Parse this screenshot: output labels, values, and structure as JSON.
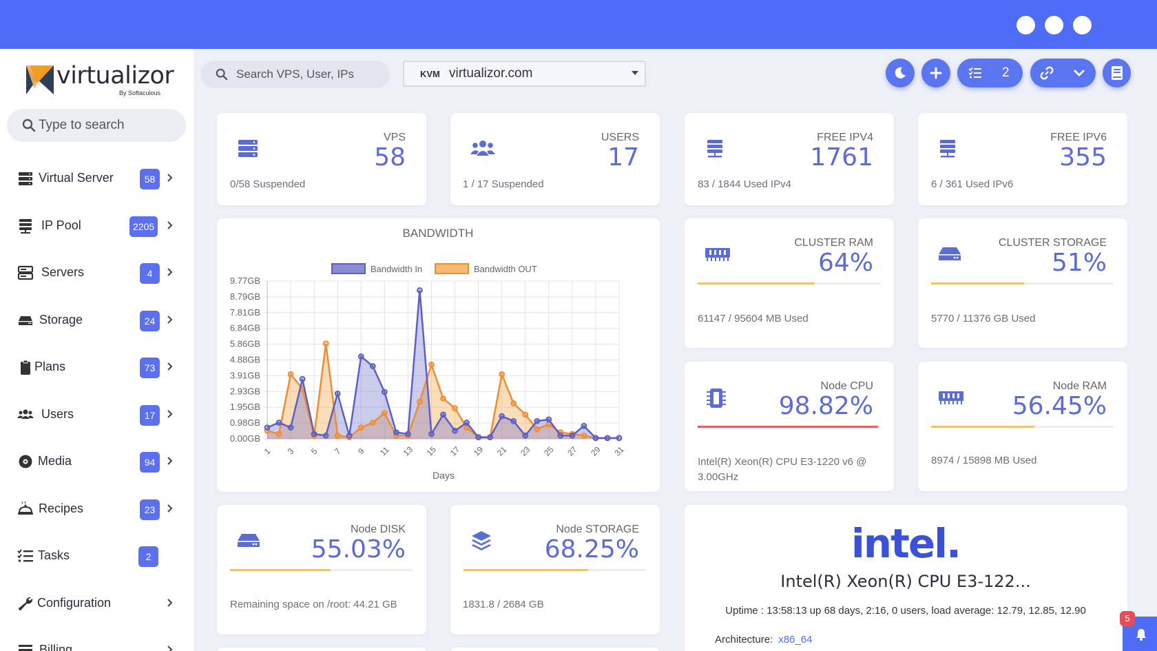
{
  "sidebar": {
    "logo_text": "virtualizor",
    "logo_sub": "By Softaculous",
    "search_placeholder": "Type to search",
    "items": [
      {
        "label": "Virtual Server",
        "badge": "58",
        "icon": "server-icon"
      },
      {
        "label": "IP Pool",
        "badge": "2205",
        "icon": "ip-pool-icon"
      },
      {
        "label": "Servers",
        "badge": "4",
        "icon": "servers-icon"
      },
      {
        "label": "Storage",
        "badge": "24",
        "icon": "hdd-icon"
      },
      {
        "label": "Plans",
        "badge": "73",
        "icon": "clipboard-icon"
      },
      {
        "label": "Users",
        "badge": "17",
        "icon": "users-icon"
      },
      {
        "label": "Media",
        "badge": "94",
        "icon": "disc-icon"
      },
      {
        "label": "Recipes",
        "badge": "23",
        "icon": "recipe-icon"
      },
      {
        "label": "Tasks",
        "badge": "2",
        "icon": "tasks-icon"
      },
      {
        "label": "Configuration",
        "badge": "",
        "icon": "wrench-icon"
      },
      {
        "label": "Billing",
        "badge": "",
        "icon": "billing-icon"
      }
    ]
  },
  "header": {
    "search_placeholder": "Search VPS, User, IPs",
    "server_select": {
      "type": "KVM",
      "host": "virtualizor.com"
    },
    "tasks_count": "2"
  },
  "stats": {
    "vps": {
      "title": "VPS",
      "value": "58",
      "sub": "0/58 Suspended"
    },
    "users": {
      "title": "USERS",
      "value": "17",
      "sub": "1 / 17 Suspended"
    },
    "ipv4": {
      "title": "FREE IPV4",
      "value": "1761",
      "sub": "83 / 1844 Used IPv4"
    },
    "ipv6": {
      "title": "FREE IPV6",
      "value": "355",
      "sub": "6 / 361 Used IPv6"
    },
    "cluster_ram": {
      "title": "CLUSTER RAM",
      "value": "64%",
      "sub": "61147 / 95604 MB Used",
      "progress": 0.64,
      "color": "#f0c36b"
    },
    "cluster_storage": {
      "title": "CLUSTER STORAGE",
      "value": "51%",
      "sub": "5770 / 11376 GB Used",
      "progress": 0.51,
      "color": "#f0c36b"
    },
    "node_cpu": {
      "title": "Node CPU",
      "value": "98.82%",
      "sub": "Intel(R) Xeon(R) CPU E3-1220 v6 @ 3.00GHz",
      "progress": 0.9882,
      "color": "#ef5a62"
    },
    "node_ram": {
      "title": "Node RAM",
      "value": "56.45%",
      "sub": "8974 / 15898 MB Used",
      "progress": 0.5645,
      "color": "#f0c36b"
    },
    "node_disk": {
      "title": "Node DISK",
      "value": "55.03%",
      "sub": "Remaining space on /root: 44.21 GB",
      "progress": 0.5503,
      "color": "#f0c36b"
    },
    "node_storage": {
      "title": "Node STORAGE",
      "value": "68.25%",
      "sub": "1831.8 / 2684 GB",
      "progress": 0.6825,
      "color": "#f0c36b"
    }
  },
  "cpu_info": {
    "brand": "intel.",
    "model": "Intel(R) Xeon(R) CPU E3-122...",
    "uptime": "Uptime : 13:58:13 up 68 days, 2:16, 0 users, load average: 12.79, 12.85, 12.90",
    "arch_label": "Architecture:",
    "arch_value": "x86_64"
  },
  "notifications": {
    "count": "5"
  },
  "chart_data": {
    "type": "area",
    "title": "BANDWIDTH",
    "xlabel": "Days",
    "ylabel": "",
    "x": [
      1,
      2,
      3,
      4,
      5,
      6,
      7,
      8,
      9,
      10,
      11,
      12,
      13,
      14,
      15,
      16,
      17,
      18,
      19,
      20,
      21,
      22,
      23,
      24,
      25,
      26,
      27,
      28,
      29,
      30,
      31
    ],
    "x_tick_labels": [
      "1",
      "3",
      "5",
      "7",
      "9",
      "11",
      "13",
      "15",
      "17",
      "19",
      "21",
      "23",
      "25",
      "27",
      "29",
      "31"
    ],
    "y_tick_labels": [
      "0.00GB",
      "0.98GB",
      "1.95GB",
      "2.93GB",
      "3.91GB",
      "4.88GB",
      "5.86GB",
      "6.84GB",
      "7.81GB",
      "8.79GB",
      "9.77GB"
    ],
    "ylim": [
      0,
      9.77
    ],
    "legend_position": "top",
    "series": [
      {
        "name": "Bandwidth In",
        "color": "#5b5fc7",
        "fill": "rgba(110,110,200,0.35)",
        "values": [
          0.7,
          1.0,
          0.7,
          3.7,
          0.3,
          0.2,
          2.8,
          0.2,
          5.1,
          4.5,
          2.9,
          0.4,
          0.3,
          9.2,
          0.3,
          1.5,
          0.5,
          1.0,
          0.1,
          0.1,
          1.4,
          1.1,
          0.2,
          1.1,
          1.2,
          0.2,
          0.2,
          0.8,
          0.05,
          0.05,
          0.05
        ]
      },
      {
        "name": "Bandwidth OUT",
        "color": "#f28b32",
        "fill": "rgba(242,170,80,0.40)",
        "values": [
          0.5,
          0.3,
          4.0,
          3.1,
          0.2,
          5.9,
          0.2,
          0.1,
          0.7,
          1.0,
          1.6,
          0.2,
          0.2,
          2.3,
          4.6,
          2.5,
          1.9,
          0.7,
          0.1,
          0.1,
          4.0,
          2.2,
          1.5,
          0.6,
          0.9,
          0.4,
          0.3,
          0.2,
          0.05,
          0.05,
          0.05
        ]
      }
    ]
  }
}
